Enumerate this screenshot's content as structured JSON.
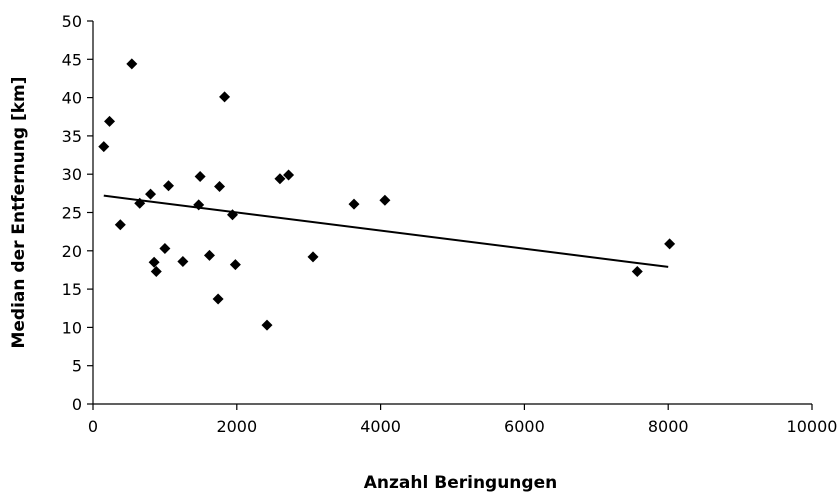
{
  "chart_data": {
    "type": "scatter",
    "xlabel": "Anzahl Beringungen",
    "ylabel": "Median der Entfernung [km]",
    "xlim": [
      0,
      10000
    ],
    "ylim": [
      0,
      50
    ],
    "xticks": [
      0,
      2000,
      4000,
      6000,
      8000,
      10000
    ],
    "yticks": [
      0,
      5,
      10,
      15,
      20,
      25,
      30,
      35,
      40,
      45,
      50
    ],
    "grid": false,
    "legend": "none",
    "marker": "diamond",
    "marker_color": "#000000",
    "points": [
      {
        "x": 150,
        "y": 33.6
      },
      {
        "x": 230,
        "y": 36.9
      },
      {
        "x": 380,
        "y": 23.4
      },
      {
        "x": 540,
        "y": 44.4
      },
      {
        "x": 650,
        "y": 26.2
      },
      {
        "x": 800,
        "y": 27.4
      },
      {
        "x": 850,
        "y": 18.5
      },
      {
        "x": 880,
        "y": 17.3
      },
      {
        "x": 1000,
        "y": 20.3
      },
      {
        "x": 1050,
        "y": 28.5
      },
      {
        "x": 1250,
        "y": 18.6
      },
      {
        "x": 1470,
        "y": 26.0
      },
      {
        "x": 1490,
        "y": 29.7
      },
      {
        "x": 1620,
        "y": 19.4
      },
      {
        "x": 1740,
        "y": 13.7
      },
      {
        "x": 1760,
        "y": 28.4
      },
      {
        "x": 1830,
        "y": 40.1
      },
      {
        "x": 1940,
        "y": 24.7
      },
      {
        "x": 1980,
        "y": 18.2
      },
      {
        "x": 2420,
        "y": 10.3
      },
      {
        "x": 2600,
        "y": 29.4
      },
      {
        "x": 2720,
        "y": 29.9
      },
      {
        "x": 3060,
        "y": 19.2
      },
      {
        "x": 3630,
        "y": 26.1
      },
      {
        "x": 4060,
        "y": 26.6
      },
      {
        "x": 7570,
        "y": 17.3
      },
      {
        "x": 8020,
        "y": 20.9
      }
    ],
    "trendline": {
      "x": [
        150,
        8000
      ],
      "y": [
        27.2,
        17.9
      ]
    }
  }
}
